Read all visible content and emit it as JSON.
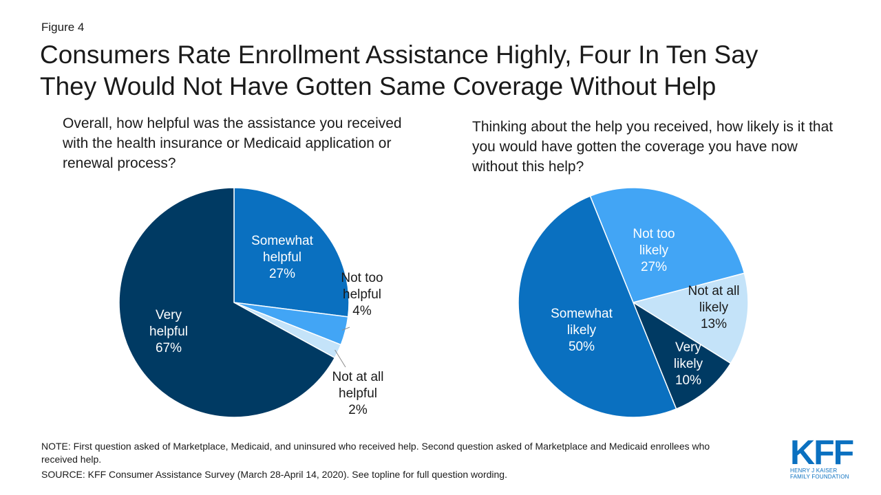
{
  "figure_label": "Figure 4",
  "title": {
    "line1": "Consumers Rate Enrollment Assistance Highly, Four In Ten Say",
    "line2": "They Would Not Have Gotten Same Coverage Without Help"
  },
  "left_question": "Overall, how helpful was the assistance you received with the health insurance or Medicaid application or renewal process?",
  "right_question": "Thinking about the help you received, how likely is it that you would have gotten the coverage you have now without this help?",
  "chart_data": [
    {
      "type": "pie",
      "title": "Overall, how helpful was the assistance you received with the health insurance or Medicaid application or renewal process?",
      "start_angle_deg": 0,
      "direction": "clockwise",
      "slices": [
        {
          "label": "Somewhat helpful",
          "value": 27,
          "display": "27%",
          "color": "#0a70c0",
          "label_color": "#ffffff",
          "lines": [
            "Somewhat",
            "helpful",
            "27%"
          ],
          "label_outside": false
        },
        {
          "label": "Not too helpful",
          "value": 4,
          "display": "4%",
          "color": "#42a5f5",
          "label_color": "#1a1a1a",
          "lines": [
            "Not too",
            "helpful",
            "4%"
          ],
          "label_outside": true
        },
        {
          "label": "Not at all helpful",
          "value": 2,
          "display": "2%",
          "color": "#c4e3f9",
          "label_color": "#1a1a1a",
          "lines": [
            "Not at all",
            "helpful",
            "2%"
          ],
          "label_outside": true
        },
        {
          "label": "Very helpful",
          "value": 67,
          "display": "67%",
          "color": "#003a63",
          "label_color": "#ffffff",
          "lines": [
            "Very",
            "helpful",
            "67%"
          ],
          "label_outside": false
        }
      ]
    },
    {
      "type": "pie",
      "title": "Thinking about the help you received, how likely is it that you would have gotten the coverage you have now without this help?",
      "start_angle_deg": -22,
      "direction": "clockwise",
      "slices": [
        {
          "label": "Not too likely",
          "value": 27,
          "display": "27%",
          "color": "#42a5f5",
          "label_color": "#ffffff",
          "lines": [
            "Not too",
            "likely",
            "27%"
          ],
          "label_outside": false
        },
        {
          "label": "Not at all likely",
          "value": 13,
          "display": "13%",
          "color": "#c4e3f9",
          "label_color": "#1a1a1a",
          "lines": [
            "Not at all",
            "likely",
            "13%"
          ],
          "label_outside": false
        },
        {
          "label": "Very likely",
          "value": 10,
          "display": "10%",
          "color": "#003a63",
          "label_color": "#ffffff",
          "lines": [
            "Very",
            "likely",
            "10%"
          ],
          "label_outside": false
        },
        {
          "label": "Somewhat likely",
          "value": 50,
          "display": "50%",
          "color": "#0a70c0",
          "label_color": "#ffffff",
          "lines": [
            "Somewhat",
            "likely",
            "50%"
          ],
          "label_outside": false
        }
      ]
    }
  ],
  "note": "NOTE: First question asked of Marketplace, Medicaid, and uninsured who received help. Second question asked of Marketplace and Medicaid enrollees who received help.",
  "source": "SOURCE: KFF Consumer Assistance Survey (March 28-April 14, 2020). See topline for full question wording.",
  "logo": {
    "mark": "KFF",
    "line1": "HENRY J KAISER",
    "line2": "FAMILY FOUNDATION"
  }
}
